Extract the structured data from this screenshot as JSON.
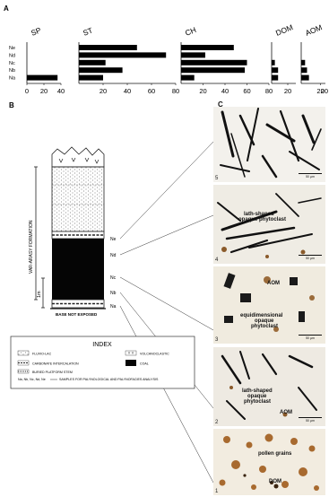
{
  "panels": {
    "a": "A",
    "b": "B",
    "c": "C"
  },
  "chart_data": {
    "type": "bar",
    "orientation": "horizontal",
    "categories": [
      "Ne",
      "Nd",
      "Nc",
      "Nb",
      "Na"
    ],
    "series": [
      {
        "name": "SP",
        "values": [
          0,
          0,
          0,
          0,
          36
        ],
        "ticks": [
          "0",
          "20",
          "40"
        ],
        "xlim": [
          0,
          40
        ]
      },
      {
        "name": "ST",
        "values": [
          48,
          72,
          22,
          36,
          20
        ],
        "ticks": [
          "20",
          "40",
          "60",
          "80"
        ],
        "xlim": [
          0,
          80
        ]
      },
      {
        "name": "CH",
        "values": [
          48,
          22,
          60,
          58,
          12
        ],
        "ticks": [
          "20",
          "40",
          "60",
          "80"
        ],
        "xlim": [
          0,
          80
        ]
      },
      {
        "name": "DOM",
        "values": [
          0,
          0,
          4,
          8,
          8
        ],
        "ticks": [
          "20"
        ],
        "xlim": [
          0,
          30
        ]
      },
      {
        "name": "AOM",
        "values": [
          0,
          0,
          4,
          6,
          8
        ],
        "ticks": [
          "20"
        ],
        "xlim": [
          0,
          25
        ]
      }
    ],
    "last_tick_right": "20"
  },
  "column": {
    "formation_label": "VAR-ARASY FORMATION",
    "thickness_label": "1m",
    "base_label": "BASE NOT EXPOSED",
    "samples": [
      "Ne",
      "Nd",
      "Nc",
      "Nb",
      "Na"
    ]
  },
  "index": {
    "title": "INDEX",
    "items": [
      "FLUVIO-LAC",
      "VOLCANOCLASTIC",
      "CARBONATE INTERCALATION",
      "COAL",
      "BURIED PLATFORM STEM"
    ],
    "sample_note_codes": "Na, Nb, Nc, Nd, Ne",
    "sample_note_text": "SAMPLES FOR PALYNOLOGICAL AND PALYNOFACIES ANALYSIS"
  },
  "photos": [
    {
      "number": "5",
      "labels": [],
      "scale": "50 µm"
    },
    {
      "number": "4",
      "labels": [
        "lath-shaped",
        "opaque phytoclast"
      ],
      "scale": "50 µm"
    },
    {
      "number": "3",
      "labels": [
        "AOM",
        "equidimensional",
        "opaque",
        "phytoclast"
      ],
      "scale": "50 µm"
    },
    {
      "number": "2",
      "labels": [
        "lath-shaped",
        "opaque",
        "phytoclast",
        "AOM"
      ],
      "scale": "50 µm"
    },
    {
      "number": "1",
      "labels": [
        "pollen grains",
        "DOM"
      ],
      "scale": ""
    }
  ]
}
